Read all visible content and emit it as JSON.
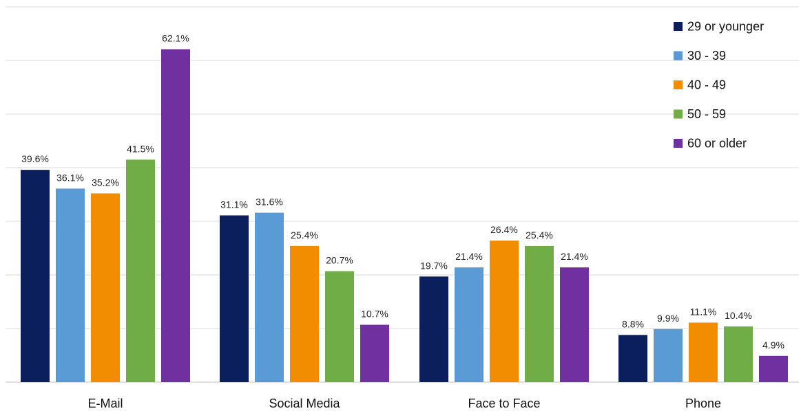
{
  "chart_data": {
    "type": "bar",
    "categories": [
      "E-Mail",
      "Social Media",
      "Face to Face",
      "Phone"
    ],
    "series": [
      {
        "name": "29 or younger",
        "color": "#0a1f5c",
        "values": [
          39.6,
          31.1,
          19.7,
          8.8
        ]
      },
      {
        "name": "30 - 39",
        "color": "#5b9bd5",
        "values": [
          36.1,
          31.6,
          21.4,
          9.9
        ]
      },
      {
        "name": "40 - 49",
        "color": "#f28c00",
        "values": [
          35.2,
          25.4,
          26.4,
          11.1
        ]
      },
      {
        "name": "50 - 59",
        "color": "#70ad47",
        "values": [
          41.5,
          20.7,
          25.4,
          10.4
        ]
      },
      {
        "name": "60 or older",
        "color": "#7030a0",
        "values": [
          62.1,
          10.7,
          21.4,
          4.9
        ]
      }
    ],
    "value_format": "{v}%",
    "ylim": [
      0,
      70
    ],
    "grid": true,
    "legend_position": "top-right",
    "title": "",
    "xlabel": "",
    "ylabel": ""
  }
}
